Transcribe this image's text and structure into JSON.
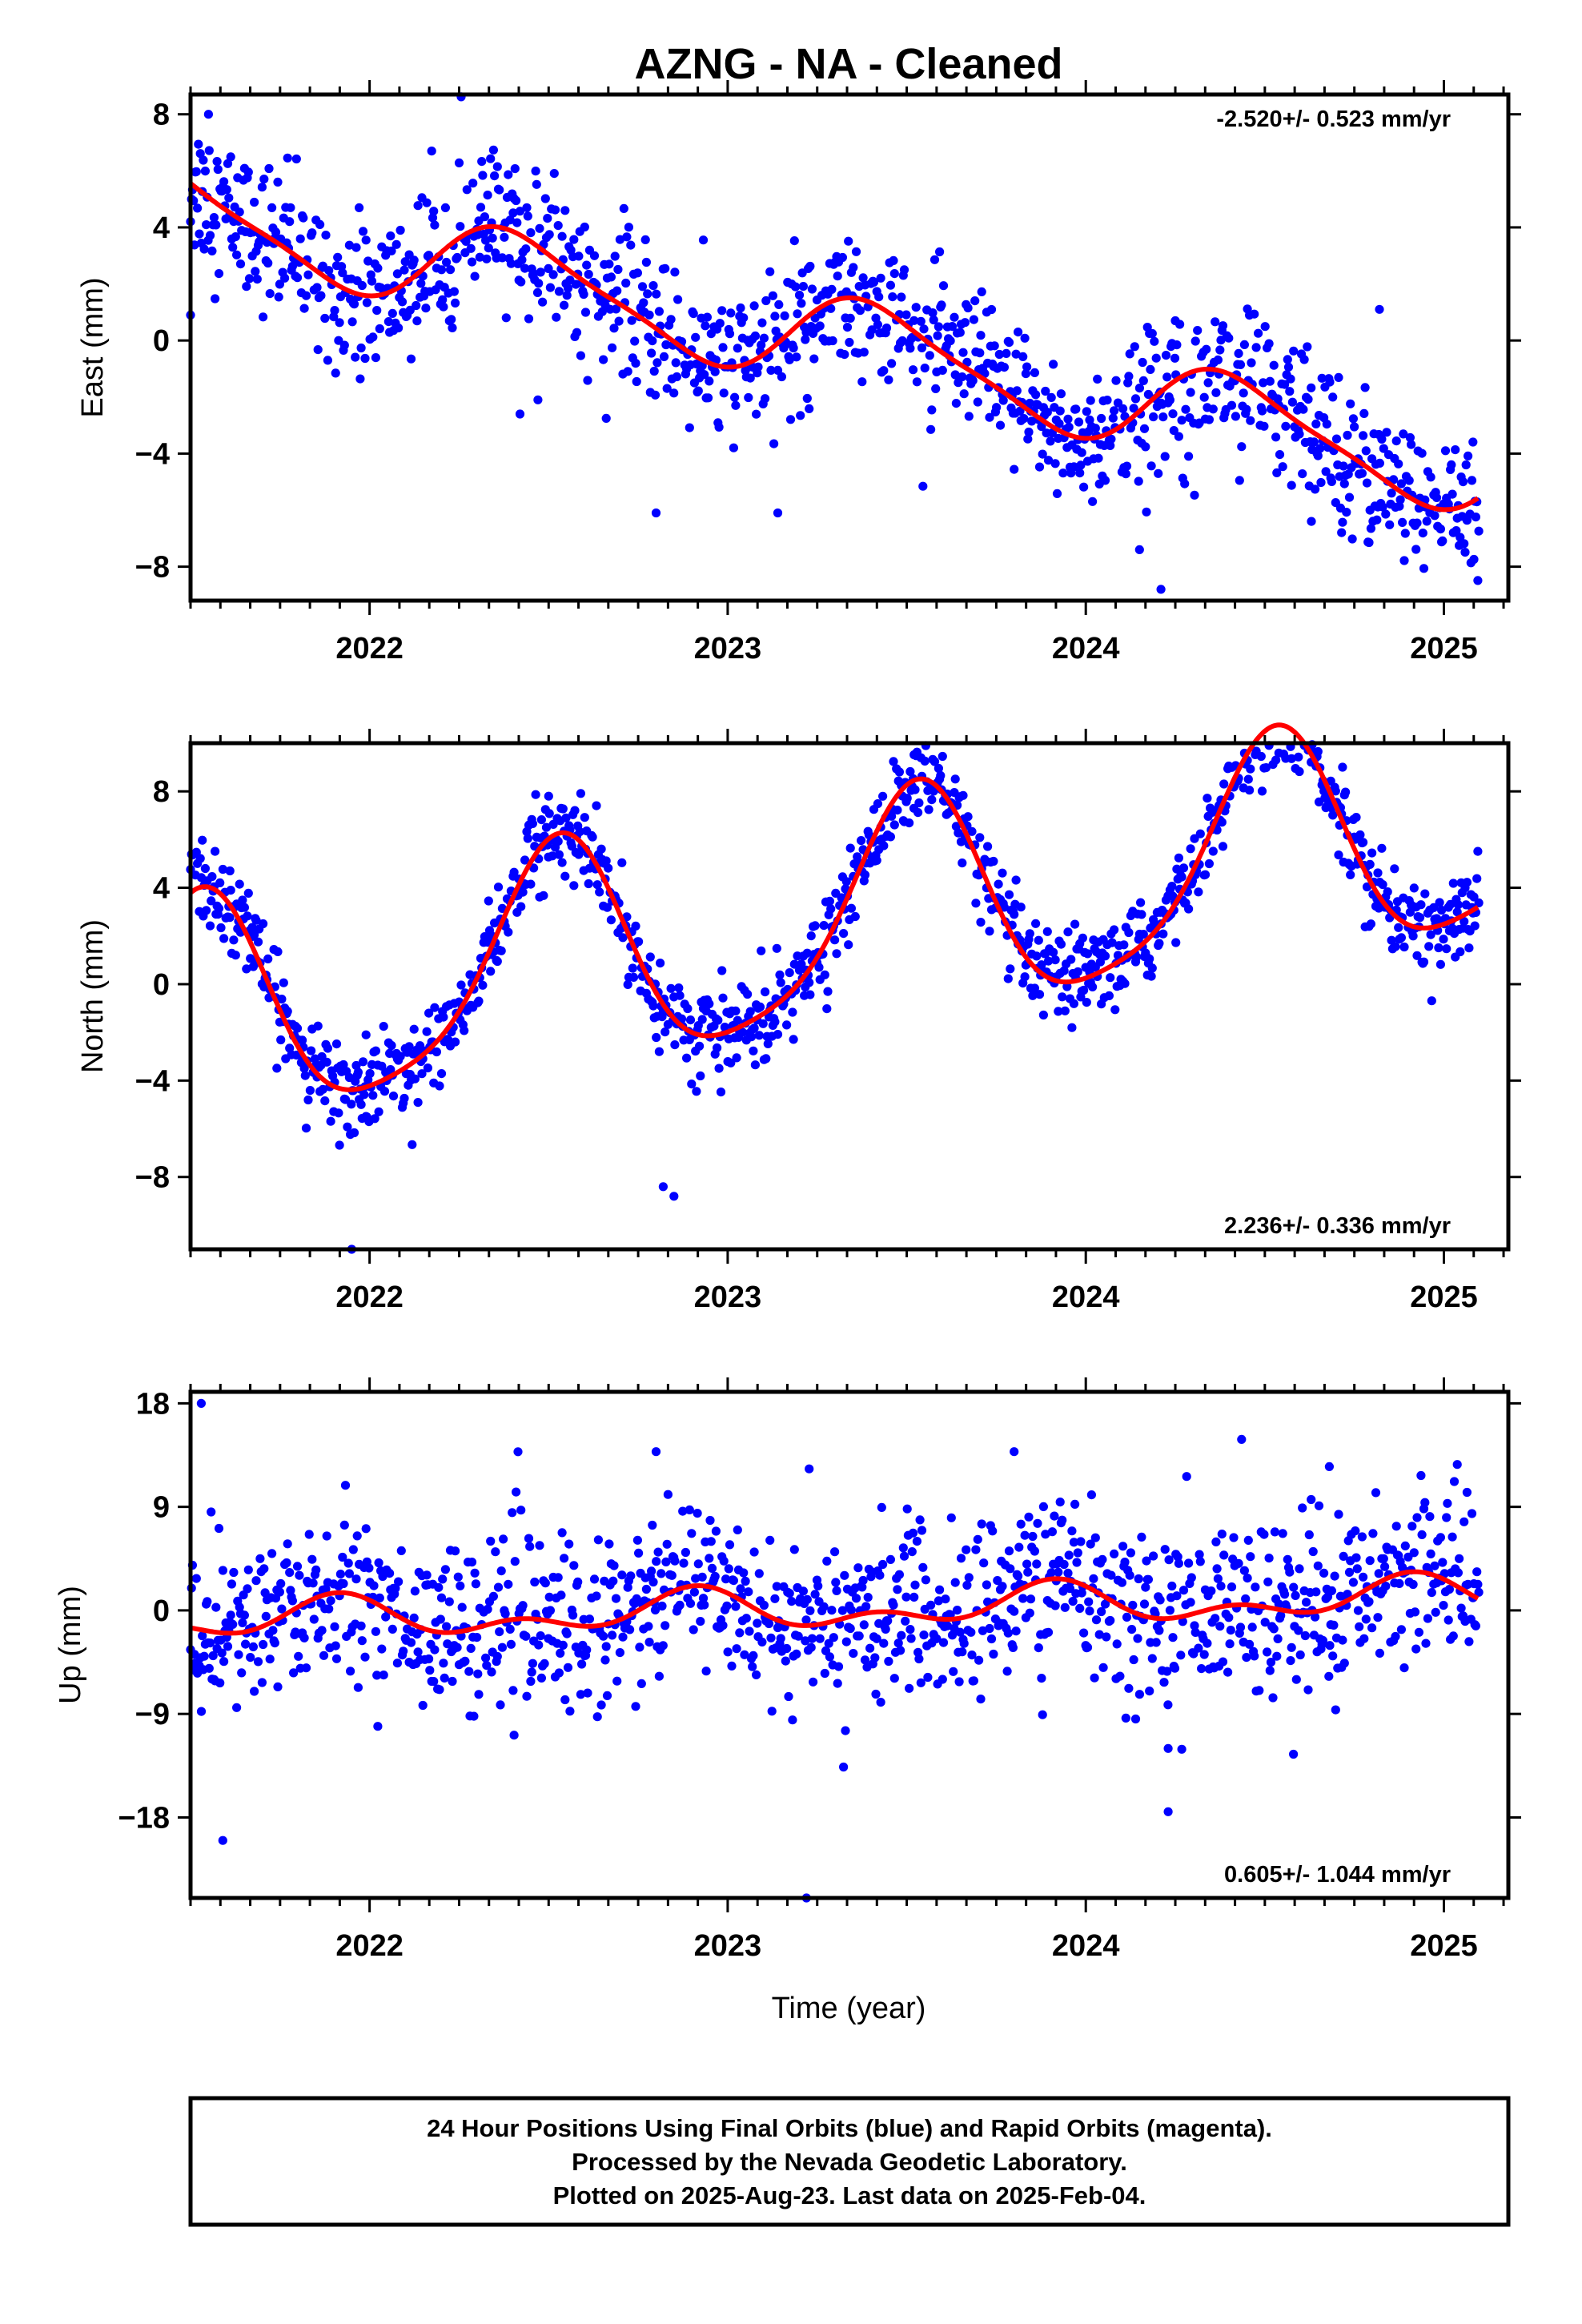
{
  "title": "AZNG  - NA - Cleaned",
  "x_label": "Time (year)",
  "footer": {
    "line1": "24 Hour Positions Using Final Orbits (blue) and Rapid Orbits (magenta).",
    "line2": "Processed by the Nevada Geodetic Laboratory.",
    "line3": "Plotted on 2025-Aug-23. Last data on 2025-Feb-04."
  },
  "colors": {
    "points": "#0000ff",
    "fit": "#ff0000",
    "frame": "#000000"
  },
  "chart_data": [
    {
      "type": "scatter",
      "ylabel": "East (mm)",
      "rate_text": "-2.520+/- 0.523 mm/yr",
      "rate_position": "top-right",
      "xlim": [
        2021.5,
        2025.18
      ],
      "ylim": [
        -9.2,
        8.7
      ],
      "x_ticks": [
        2022,
        2023,
        2024,
        2025
      ],
      "x_tick_labels": [
        "2022",
        "2023",
        "2024",
        "2025"
      ],
      "y_ticks": [
        8,
        4,
        0,
        -4,
        -8
      ],
      "y_tick_labels": [
        "8",
        "4",
        "0",
        "−4",
        "−8"
      ],
      "model": {
        "base": 4.48,
        "rate": -2.52,
        "annual_amp": 1.55,
        "annual_phase_peak": 0.42,
        "semiannual_amp": 0.35,
        "semiannual_phase_peak": 0.3
      },
      "points_summary": {
        "start": 2021.5,
        "end": 2025.1,
        "daily": true,
        "scatter_mm": 1.3
      },
      "outliers": [
        [
          2021.5,
          0.9
        ],
        [
          2021.55,
          8.0
        ],
        [
          2022.42,
          -2.6
        ],
        [
          2022.47,
          -2.1
        ],
        [
          2022.8,
          -6.1
        ],
        [
          2023.14,
          -6.1
        ],
        [
          2024.15,
          -7.4
        ],
        [
          2024.21,
          -8.8
        ],
        [
          2024.25,
          0.7
        ],
        [
          2024.63,
          -6.4
        ],
        [
          2024.82,
          1.1
        ]
      ]
    },
    {
      "type": "scatter",
      "ylabel": "North (mm)",
      "rate_text": "2.236+/- 0.336 mm/yr",
      "rate_position": "bottom-right",
      "xlim": [
        2021.5,
        2025.18
      ],
      "ylim": [
        -11.0,
        10.0
      ],
      "x_ticks": [
        2022,
        2023,
        2024,
        2025
      ],
      "x_tick_labels": [
        "2022",
        "2023",
        "2024",
        "2025"
      ],
      "y_ticks": [
        8,
        4,
        0,
        -4,
        -8
      ],
      "y_tick_labels": [
        "8",
        "4",
        "0",
        "−4",
        "−8"
      ],
      "model": {
        "base": -1.5,
        "rate": 2.236,
        "annual_amp": 4.6,
        "annual_phase_peak": 0.52,
        "semiannual_amp": 0.9,
        "semiannual_phase_peak": 0.55
      },
      "points_summary": {
        "start": 2021.5,
        "end": 2025.1,
        "daily": true,
        "scatter_mm": 0.9
      },
      "outliers": [
        [
          2021.61,
          4.7
        ],
        [
          2021.95,
          -11.0
        ],
        [
          2021.99,
          -2.1
        ],
        [
          2022.5,
          7.8
        ],
        [
          2022.82,
          -8.4
        ],
        [
          2022.85,
          -8.8
        ],
        [
          2023.52,
          7.3
        ]
      ]
    },
    {
      "type": "scatter",
      "ylabel": "Up (mm)",
      "rate_text": "0.605+/- 1.044 mm/yr",
      "rate_position": "bottom-right",
      "xlim": [
        2021.5,
        2025.18
      ],
      "ylim": [
        -25.0,
        19.0
      ],
      "x_ticks": [
        2022,
        2023,
        2024,
        2025
      ],
      "x_tick_labels": [
        "2022",
        "2023",
        "2024",
        "2025"
      ],
      "y_ticks": [
        18,
        9,
        0,
        -9,
        -18
      ],
      "y_tick_labels": [
        "18",
        "9",
        "0",
        "−9",
        "−18"
      ],
      "model": {
        "base": -1.0,
        "rate": 0.605,
        "annual_amp": 1.3,
        "annual_phase_peak": 0.9,
        "semiannual_amp": 1.0,
        "semiannual_phase_peak": 0.42
      },
      "points_summary": {
        "start": 2021.5,
        "end": 2025.1,
        "daily": true,
        "scatter_mm": 3.8
      },
      "outliers": [
        [
          2021.53,
          18.0
        ],
        [
          2021.59,
          -20.0
        ],
        [
          2022.8,
          13.8
        ],
        [
          2023.22,
          -25.0
        ],
        [
          2023.8,
          13.8
        ],
        [
          2024.23,
          -17.5
        ],
        [
          2024.23,
          -12.0
        ],
        [
          2024.58,
          -12.5
        ],
        [
          2024.68,
          12.5
        ]
      ]
    }
  ]
}
